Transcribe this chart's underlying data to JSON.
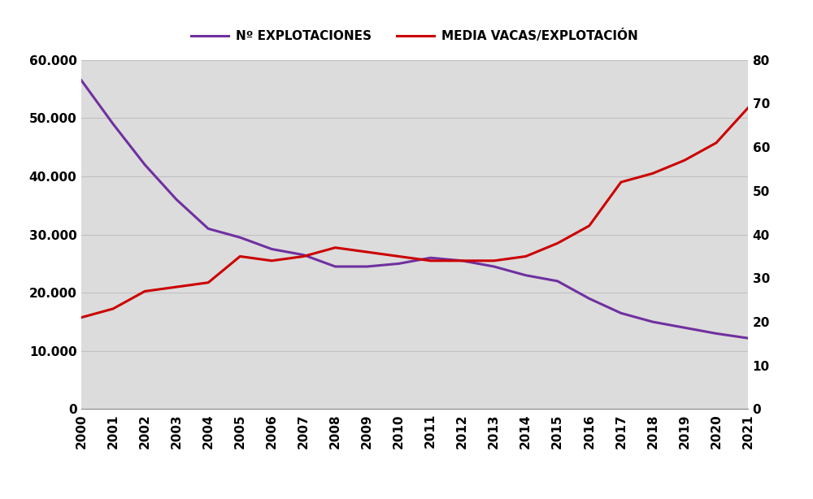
{
  "years": [
    2000,
    2001,
    2002,
    2003,
    2004,
    2005,
    2006,
    2007,
    2008,
    2009,
    2010,
    2011,
    2012,
    2013,
    2014,
    2015,
    2016,
    2017,
    2018,
    2019,
    2020,
    2021
  ],
  "explotaciones": [
    56500,
    49000,
    42000,
    36000,
    31000,
    29500,
    27500,
    26500,
    24500,
    24500,
    25000,
    26000,
    25500,
    24500,
    23000,
    22000,
    19000,
    16500,
    15000,
    14000,
    13000,
    12200
  ],
  "media_vacas": [
    21,
    23,
    27,
    28,
    29,
    35,
    34,
    35,
    37,
    36,
    35,
    34,
    34,
    34,
    35,
    38,
    42,
    52,
    54,
    57,
    61,
    69
  ],
  "legend_label_1": "Nº EXPLOTACIONES",
  "legend_label_2": "MEDIA VACAS/EXPLOTACIÓN",
  "line_color_1": "#7030a0",
  "line_color_2": "#cc0000",
  "left_ylim": [
    0,
    60000
  ],
  "right_ylim": [
    0,
    80
  ],
  "left_yticks": [
    0,
    10000,
    20000,
    30000,
    40000,
    50000,
    60000
  ],
  "right_yticks": [
    0,
    10,
    20,
    30,
    40,
    50,
    60,
    70,
    80
  ],
  "plot_bg_color": "#dcdcdc",
  "fig_background": "#ffffff",
  "grid_color": "#c0c0c0",
  "line_width": 2.2,
  "tick_fontsize": 11,
  "tick_fontweight": "bold",
  "legend_fontsize": 11
}
